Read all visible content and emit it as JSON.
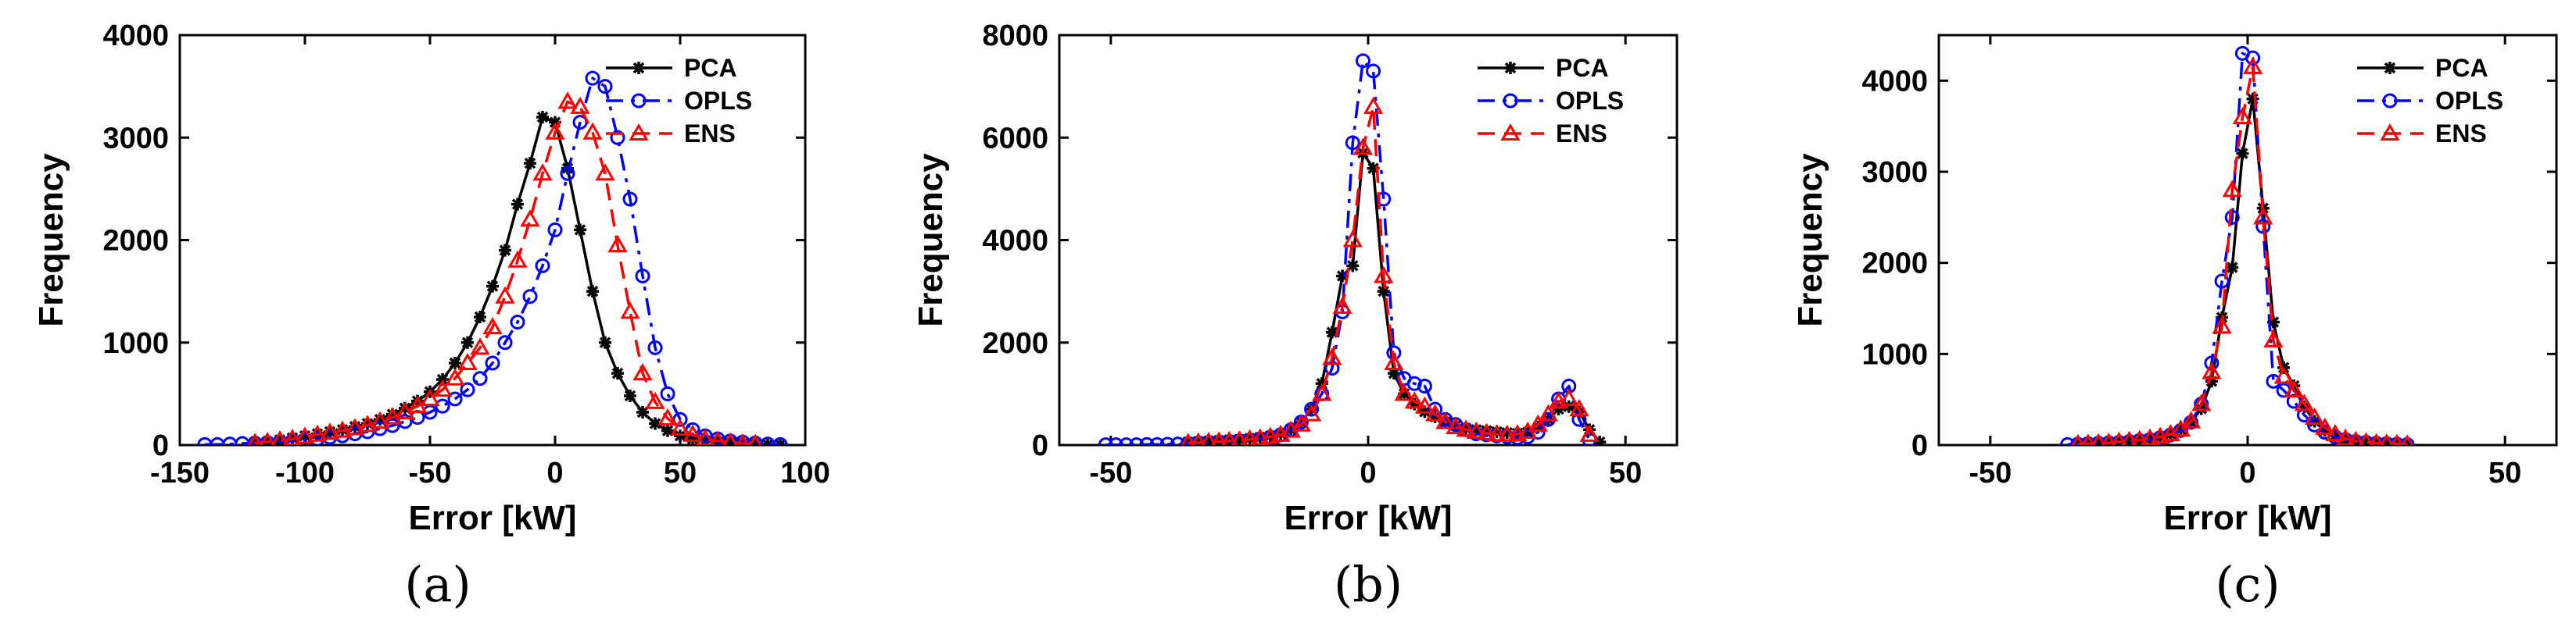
{
  "colors": {
    "PCA": "#000000",
    "OPLS": "#0000ff",
    "ENS": "#ff0000"
  },
  "chart_data": [
    {
      "type": "line",
      "panel_label": "(a)",
      "xlabel": "Error [kW]",
      "ylabel": "Frequency",
      "xlim": [
        -150,
        100
      ],
      "ylim": [
        0,
        4000
      ],
      "xticks": [
        -150,
        -100,
        -50,
        0,
        50,
        100
      ],
      "yticks": [
        0,
        1000,
        2000,
        3000,
        4000
      ],
      "legend": {
        "position": "top-right",
        "entries": [
          "PCA",
          "OPLS",
          "ENS"
        ]
      },
      "series": [
        {
          "name": "PCA",
          "color": "#000000",
          "marker": "asterisk",
          "style": "solid",
          "x": [
            -120,
            -115,
            -110,
            -105,
            -100,
            -95,
            -90,
            -85,
            -80,
            -75,
            -70,
            -65,
            -60,
            -55,
            -50,
            -45,
            -40,
            -35,
            -30,
            -25,
            -20,
            -15,
            -10,
            -5,
            0,
            5,
            10,
            15,
            20,
            25,
            30,
            35,
            40,
            45,
            50,
            55,
            60,
            65,
            70,
            75,
            80,
            85,
            90
          ],
          "y": [
            20,
            30,
            50,
            70,
            90,
            110,
            130,
            150,
            180,
            210,
            250,
            300,
            360,
            430,
            520,
            640,
            800,
            1000,
            1250,
            1550,
            1900,
            2350,
            2750,
            3200,
            3150,
            2700,
            2100,
            1500,
            1000,
            700,
            480,
            320,
            210,
            140,
            90,
            60,
            40,
            30,
            20,
            15,
            10,
            5,
            5
          ]
        },
        {
          "name": "OPLS",
          "color": "#0000ff",
          "marker": "circle",
          "style": "dashdot",
          "x": [
            -140,
            -135,
            -130,
            -125,
            -120,
            -115,
            -110,
            -105,
            -100,
            -95,
            -90,
            -85,
            -80,
            -75,
            -70,
            -65,
            -60,
            -55,
            -50,
            -45,
            -40,
            -35,
            -30,
            -25,
            -20,
            -15,
            -10,
            -5,
            0,
            5,
            10,
            15,
            20,
            25,
            30,
            35,
            40,
            45,
            50,
            55,
            60,
            65,
            70,
            75,
            80,
            85,
            90
          ],
          "y": [
            5,
            5,
            10,
            15,
            20,
            25,
            30,
            40,
            50,
            60,
            75,
            90,
            110,
            130,
            160,
            190,
            230,
            270,
            320,
            380,
            450,
            540,
            650,
            800,
            1000,
            1200,
            1450,
            1750,
            2100,
            2650,
            3150,
            3580,
            3500,
            3000,
            2400,
            1650,
            950,
            500,
            250,
            150,
            90,
            60,
            40,
            30,
            20,
            10,
            5
          ]
        },
        {
          "name": "ENS",
          "color": "#ff0000",
          "marker": "triangle",
          "style": "dashed",
          "x": [
            -120,
            -115,
            -110,
            -105,
            -100,
            -95,
            -90,
            -85,
            -80,
            -75,
            -70,
            -65,
            -60,
            -55,
            -50,
            -45,
            -40,
            -35,
            -30,
            -25,
            -20,
            -15,
            -10,
            -5,
            0,
            5,
            10,
            15,
            20,
            25,
            30,
            35,
            40,
            45,
            50,
            55,
            60,
            65,
            70,
            75,
            80
          ],
          "y": [
            20,
            30,
            45,
            60,
            80,
            100,
            120,
            140,
            165,
            195,
            230,
            270,
            320,
            380,
            450,
            540,
            650,
            800,
            950,
            1150,
            1450,
            1800,
            2200,
            2650,
            3050,
            3350,
            3300,
            3050,
            2650,
            1950,
            1300,
            700,
            420,
            260,
            160,
            100,
            60,
            40,
            25,
            15,
            10
          ]
        }
      ]
    },
    {
      "type": "line",
      "panel_label": "(b)",
      "xlabel": "Error [kW]",
      "ylabel": "Frequency",
      "xlim": [
        -60,
        60
      ],
      "ylim": [
        0,
        8000
      ],
      "xticks": [
        -50,
        0,
        50
      ],
      "yticks": [
        0,
        2000,
        4000,
        6000,
        8000
      ],
      "legend": {
        "position": "top-right",
        "entries": [
          "PCA",
          "OPLS",
          "ENS"
        ]
      },
      "series": [
        {
          "name": "PCA",
          "color": "#000000",
          "marker": "asterisk",
          "style": "solid",
          "x": [
            -35,
            -33,
            -31,
            -29,
            -27,
            -25,
            -23,
            -21,
            -19,
            -17,
            -15,
            -13,
            -11,
            -9,
            -7,
            -5,
            -3,
            -1,
            1,
            3,
            5,
            7,
            9,
            11,
            13,
            15,
            17,
            19,
            21,
            23,
            25,
            27,
            29,
            31,
            33,
            35,
            37,
            39,
            41,
            43,
            45
          ],
          "y": [
            60,
            70,
            80,
            90,
            100,
            110,
            130,
            150,
            180,
            220,
            300,
            450,
            700,
            1200,
            2200,
            3300,
            3500,
            5700,
            5400,
            3000,
            1400,
            1000,
            800,
            650,
            550,
            450,
            380,
            330,
            300,
            280,
            260,
            240,
            230,
            250,
            350,
            500,
            700,
            750,
            650,
            300,
            60
          ]
        },
        {
          "name": "OPLS",
          "color": "#0000ff",
          "marker": "circle",
          "style": "dashdot",
          "x": [
            -51,
            -49,
            -47,
            -45,
            -43,
            -41,
            -39,
            -37,
            -35,
            -33,
            -31,
            -29,
            -27,
            -25,
            -23,
            -21,
            -19,
            -17,
            -15,
            -13,
            -11,
            -9,
            -7,
            -5,
            -3,
            -1,
            1,
            3,
            5,
            7,
            9,
            11,
            13,
            15,
            17,
            19,
            21,
            23,
            25,
            27,
            29,
            31,
            33,
            35,
            37,
            39,
            41,
            43
          ],
          "y": [
            5,
            5,
            5,
            5,
            10,
            10,
            15,
            20,
            30,
            40,
            50,
            60,
            70,
            80,
            100,
            120,
            150,
            200,
            300,
            450,
            700,
            1000,
            1500,
            2600,
            5900,
            7500,
            7300,
            4800,
            1800,
            1300,
            1200,
            1150,
            700,
            500,
            400,
            300,
            220,
            200,
            180,
            160,
            140,
            160,
            250,
            500,
            900,
            1150,
            500,
            100
          ]
        },
        {
          "name": "ENS",
          "color": "#ff0000",
          "marker": "triangle",
          "style": "dashed",
          "x": [
            -35,
            -33,
            -31,
            -29,
            -27,
            -25,
            -23,
            -21,
            -19,
            -17,
            -15,
            -13,
            -11,
            -9,
            -7,
            -5,
            -3,
            -1,
            1,
            3,
            5,
            7,
            9,
            11,
            13,
            15,
            17,
            19,
            21,
            23,
            25,
            27,
            29,
            31,
            33,
            35,
            37,
            39,
            41,
            43
          ],
          "y": [
            40,
            50,
            60,
            70,
            80,
            90,
            110,
            130,
            160,
            200,
            280,
            400,
            600,
            1000,
            1700,
            2700,
            4000,
            5800,
            6600,
            3300,
            1600,
            1000,
            850,
            750,
            600,
            450,
            350,
            300,
            260,
            230,
            210,
            200,
            210,
            260,
            400,
            600,
            850,
            900,
            700,
            200
          ]
        }
      ]
    },
    {
      "type": "line",
      "panel_label": "(c)",
      "xlabel": "Error [kW]",
      "ylabel": "Frequency",
      "xlim": [
        -60,
        60
      ],
      "ylim": [
        0,
        4500
      ],
      "xticks": [
        -50,
        0,
        50
      ],
      "yticks": [
        0,
        1000,
        2000,
        3000,
        4000
      ],
      "legend": {
        "position": "top-right",
        "entries": [
          "PCA",
          "OPLS",
          "ENS"
        ]
      },
      "series": [
        {
          "name": "PCA",
          "color": "#000000",
          "marker": "asterisk",
          "style": "solid",
          "x": [
            -33,
            -31,
            -29,
            -27,
            -25,
            -23,
            -21,
            -19,
            -17,
            -15,
            -13,
            -11,
            -9,
            -7,
            -5,
            -3,
            -1,
            1,
            3,
            5,
            7,
            9,
            11,
            13,
            15,
            17,
            19,
            21,
            23,
            25,
            27,
            29,
            31
          ],
          "y": [
            10,
            15,
            20,
            25,
            30,
            40,
            50,
            70,
            90,
            120,
            170,
            250,
            400,
            700,
            1400,
            1950,
            3200,
            3800,
            2600,
            1350,
            850,
            650,
            420,
            260,
            160,
            100,
            60,
            40,
            30,
            20,
            15,
            10,
            5
          ]
        },
        {
          "name": "OPLS",
          "color": "#0000ff",
          "marker": "circle",
          "style": "dashdot",
          "x": [
            -35,
            -33,
            -31,
            -29,
            -27,
            -25,
            -23,
            -21,
            -19,
            -17,
            -15,
            -13,
            -11,
            -9,
            -7,
            -5,
            -3,
            -1,
            1,
            3,
            5,
            7,
            9,
            11,
            13,
            15,
            17,
            19,
            21,
            23,
            25,
            27,
            29,
            31
          ],
          "y": [
            5,
            10,
            15,
            20,
            25,
            30,
            40,
            50,
            60,
            80,
            110,
            160,
            250,
            450,
            900,
            1800,
            2500,
            4300,
            4250,
            2400,
            700,
            600,
            480,
            330,
            220,
            140,
            90,
            60,
            40,
            30,
            20,
            15,
            10,
            5
          ]
        },
        {
          "name": "ENS",
          "color": "#ff0000",
          "marker": "triangle",
          "style": "dashed",
          "x": [
            -33,
            -31,
            -29,
            -27,
            -25,
            -23,
            -21,
            -19,
            -17,
            -15,
            -13,
            -11,
            -9,
            -7,
            -5,
            -3,
            -1,
            1,
            3,
            5,
            7,
            9,
            11,
            13,
            15,
            17,
            19,
            21,
            23,
            25,
            27,
            29,
            31
          ],
          "y": [
            10,
            15,
            20,
            25,
            35,
            45,
            55,
            70,
            90,
            120,
            170,
            260,
            450,
            800,
            1300,
            2800,
            3600,
            4150,
            2500,
            1150,
            750,
            600,
            450,
            300,
            190,
            120,
            70,
            45,
            30,
            20,
            15,
            10,
            5
          ]
        }
      ]
    }
  ]
}
